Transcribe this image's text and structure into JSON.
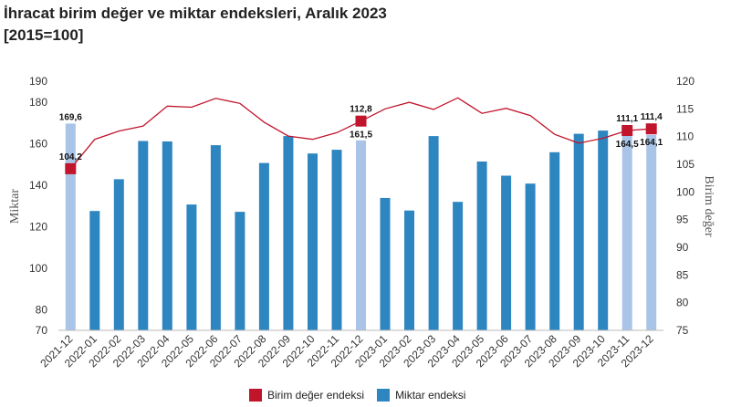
{
  "title": "İhracat birim değer ve miktar endeksleri, Aralık 2023",
  "subtitle": "[2015=100]",
  "legend": {
    "unit_value": "Birim değer endeksi",
    "quantity": "Miktar endeksi"
  },
  "colors": {
    "bar": "#2e86c1",
    "bar_highlight": "#a9c4e6",
    "line": "#c0152b",
    "marker": "#c0152b"
  },
  "chart_data": {
    "type": "bar",
    "categories": [
      "2021-12",
      "2022-01",
      "2022-02",
      "2022-03",
      "2022-04",
      "2022-05",
      "2022-06",
      "2022-07",
      "2022-08",
      "2022-09",
      "2022-10",
      "2022-11",
      "2022-12",
      "2023-01",
      "2023-02",
      "2023-03",
      "2023-04",
      "2023-05",
      "2023-06",
      "2023-07",
      "2023-08",
      "2023-09",
      "2023-10",
      "2023-11",
      "2023-12"
    ],
    "ylabel": "Miktar",
    "y2label": "Birim değer",
    "ylim": [
      70,
      190
    ],
    "yticks": [
      70,
      80,
      100,
      120,
      140,
      160,
      180,
      190
    ],
    "y2lim": [
      75,
      120
    ],
    "y2ticks": [
      75,
      80,
      85,
      90,
      95,
      100,
      105,
      110,
      115,
      120
    ],
    "series": [
      {
        "name": "Miktar endeksi",
        "type": "bar",
        "axis": "left",
        "values": [
          169.6,
          127.5,
          142.8,
          161.2,
          161.0,
          130.6,
          159.2,
          127.1,
          150.6,
          163.6,
          155.2,
          157.0,
          161.5,
          133.8,
          127.7,
          163.6,
          131.9,
          151.3,
          144.5,
          140.7,
          155.8,
          164.7,
          166.2,
          164.5,
          164.1
        ],
        "highlight": [
          true,
          false,
          false,
          false,
          false,
          false,
          false,
          false,
          false,
          false,
          false,
          false,
          true,
          false,
          false,
          false,
          false,
          false,
          false,
          false,
          false,
          false,
          false,
          true,
          true
        ]
      },
      {
        "name": "Birim değer endeksi",
        "type": "line",
        "axis": "right",
        "values": [
          104.2,
          109.5,
          111.0,
          111.9,
          115.5,
          115.3,
          116.9,
          116.0,
          112.6,
          110.1,
          109.5,
          110.7,
          112.8,
          115.0,
          116.2,
          114.9,
          117.0,
          114.2,
          115.1,
          113.8,
          110.4,
          108.8,
          109.7,
          111.1,
          111.4
        ],
        "markers": [
          true,
          false,
          false,
          false,
          false,
          false,
          false,
          false,
          false,
          false,
          false,
          false,
          true,
          false,
          false,
          false,
          false,
          false,
          false,
          false,
          false,
          false,
          false,
          true,
          true
        ]
      }
    ],
    "data_labels": [
      {
        "index": 0,
        "bar": "169,6",
        "line": "104,2"
      },
      {
        "index": 12,
        "bar": "161,5",
        "line": "112,8"
      },
      {
        "index": 23,
        "bar": "164,5",
        "line": "111,1"
      },
      {
        "index": 24,
        "bar": "164,1",
        "line": "111,4"
      }
    ]
  }
}
